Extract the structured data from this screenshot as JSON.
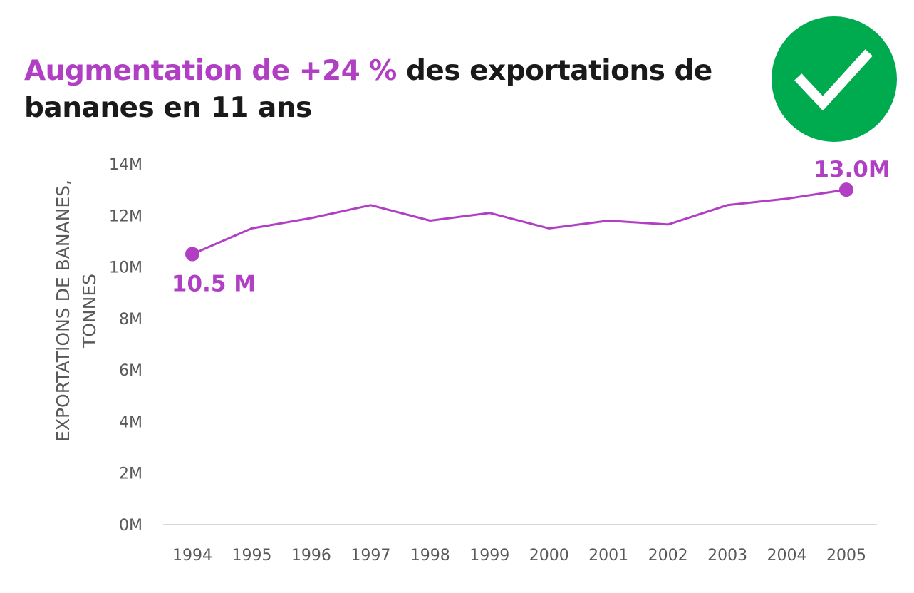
{
  "title": {
    "highlight": "Augmentation de +24 %",
    "rest": " des exportations de bananes en 11 ans"
  },
  "badge": {
    "icon": "checkmark-icon",
    "color": "#00aa4f"
  },
  "colors": {
    "series": "#b03fc3",
    "title": "#1a1a1a",
    "axis_text": "#595959",
    "baseline": "#cccccc"
  },
  "chart_data": {
    "type": "line",
    "title": "Augmentation de +24 % des exportations de bananes en 11 ans",
    "xlabel": "",
    "ylabel_lines": [
      "EXPORTATIONS DE BANANES,",
      "TONNES"
    ],
    "x": [
      "1994",
      "1995",
      "1996",
      "1997",
      "1998",
      "1999",
      "2000",
      "2001",
      "2002",
      "2003",
      "2004",
      "2005"
    ],
    "series": [
      {
        "values": [
          10.5,
          11.5,
          11.9,
          12.4,
          11.8,
          12.1,
          11.5,
          11.8,
          11.65,
          12.4,
          12.65,
          13.0
        ]
      }
    ],
    "units": "millions of tonnes",
    "ylim": [
      0,
      14
    ],
    "yticks": [
      0,
      2,
      4,
      6,
      8,
      10,
      12,
      14
    ],
    "ytick_labels": [
      "0M",
      "2M",
      "4M",
      "6M",
      "8M",
      "10M",
      "12M",
      "14M"
    ],
    "grid": false,
    "legend": "none",
    "annotations": [
      {
        "x": "1994",
        "value": 10.5,
        "label": "10.5 M"
      },
      {
        "x": "2005",
        "value": 13.0,
        "label": "13.0M"
      }
    ]
  }
}
